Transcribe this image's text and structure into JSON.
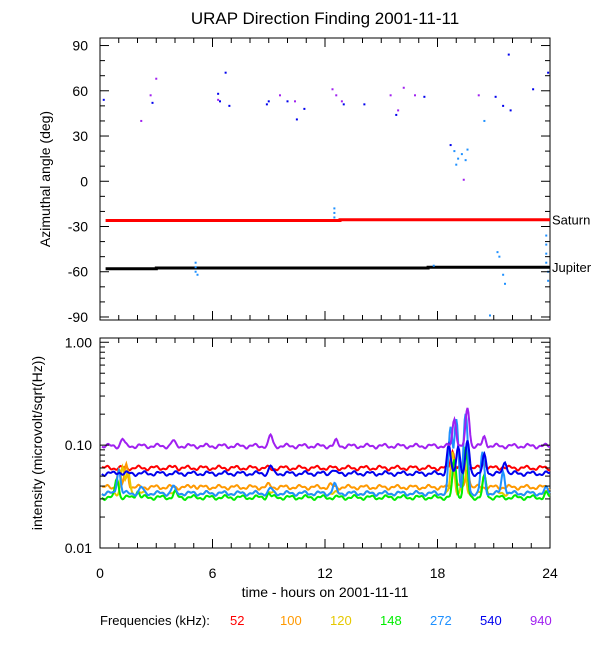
{
  "title": "URAP Direction Finding  2001-11-11",
  "xlabel": "time - hours on 2001-11-11",
  "frequencies_label": "Frequencies (kHz):",
  "chart_data": [
    {
      "type": "scatter",
      "title": "URAP Direction Finding  2001-11-11",
      "ylabel": "Azimuthal angle (deg)",
      "xlim": [
        0,
        24
      ],
      "ylim": [
        -92,
        95
      ],
      "xticks": [
        "0",
        "6",
        "12",
        "18",
        "24"
      ],
      "yticks": [
        "90",
        "60",
        "30",
        "0",
        "-30",
        "-60",
        "-90"
      ],
      "reference_lines": [
        {
          "name": "Saturn",
          "color": "#ff0000",
          "points": [
            [
              0.3,
              -26
            ],
            [
              12.8,
              -26
            ],
            [
              12.8,
              -25.5
            ],
            [
              24,
              -25.5
            ]
          ]
        },
        {
          "name": "Jupiter",
          "color": "#000000",
          "points": [
            [
              0.3,
              -58
            ],
            [
              3,
              -58
            ],
            [
              3,
              -57.5
            ],
            [
              17.5,
              -57.5
            ],
            [
              17.5,
              -57
            ],
            [
              24,
              -57
            ]
          ]
        }
      ],
      "points": [
        {
          "x": 0.2,
          "y": 54,
          "color": "#0000ee"
        },
        {
          "x": 2.2,
          "y": 40,
          "color": "#a020f0"
        },
        {
          "x": 2.7,
          "y": 57,
          "color": "#a020f0"
        },
        {
          "x": 2.8,
          "y": 52,
          "color": "#0000ee"
        },
        {
          "x": 3.0,
          "y": 68,
          "color": "#a020f0"
        },
        {
          "x": 6.3,
          "y": 58,
          "color": "#0000ee"
        },
        {
          "x": 6.3,
          "y": 54,
          "color": "#a020f0"
        },
        {
          "x": 6.4,
          "y": 53,
          "color": "#0000ee"
        },
        {
          "x": 6.7,
          "y": 72,
          "color": "#0000ee"
        },
        {
          "x": 6.9,
          "y": 50,
          "color": "#0000ee"
        },
        {
          "x": 8.9,
          "y": 51,
          "color": "#0000ee"
        },
        {
          "x": 9.0,
          "y": 53,
          "color": "#0000ee"
        },
        {
          "x": 9.6,
          "y": 57,
          "color": "#a020f0"
        },
        {
          "x": 10.0,
          "y": 53,
          "color": "#0000ee"
        },
        {
          "x": 10.4,
          "y": 53,
          "color": "#a020f0"
        },
        {
          "x": 10.5,
          "y": 41,
          "color": "#0000ee"
        },
        {
          "x": 10.9,
          "y": 48,
          "color": "#0000ee"
        },
        {
          "x": 12.4,
          "y": 61,
          "color": "#a020f0"
        },
        {
          "x": 12.6,
          "y": 57,
          "color": "#a020f0"
        },
        {
          "x": 12.9,
          "y": 53,
          "color": "#a020f0"
        },
        {
          "x": 13.0,
          "y": 51,
          "color": "#0000ee"
        },
        {
          "x": 14.1,
          "y": 51,
          "color": "#0000ee"
        },
        {
          "x": 15.5,
          "y": 57,
          "color": "#a020f0"
        },
        {
          "x": 15.8,
          "y": 44,
          "color": "#0000ee"
        },
        {
          "x": 15.9,
          "y": 47,
          "color": "#a020f0"
        },
        {
          "x": 16.2,
          "y": 62,
          "color": "#a020f0"
        },
        {
          "x": 16.8,
          "y": 57,
          "color": "#a020f0"
        },
        {
          "x": 17.3,
          "y": 56,
          "color": "#0000ee"
        },
        {
          "x": 18.7,
          "y": 24,
          "color": "#0000ee"
        },
        {
          "x": 18.9,
          "y": 20,
          "color": "#1e90ff"
        },
        {
          "x": 19.1,
          "y": 15,
          "color": "#1e90ff"
        },
        {
          "x": 19.0,
          "y": 11,
          "color": "#1e90ff"
        },
        {
          "x": 19.3,
          "y": 18,
          "color": "#1e90ff"
        },
        {
          "x": 19.5,
          "y": 14,
          "color": "#1e90ff"
        },
        {
          "x": 19.6,
          "y": 21,
          "color": "#1e90ff"
        },
        {
          "x": 19.4,
          "y": 1,
          "color": "#a020f0"
        },
        {
          "x": 20.2,
          "y": 57,
          "color": "#a020f0"
        },
        {
          "x": 20.5,
          "y": 40,
          "color": "#1e90ff"
        },
        {
          "x": 21.1,
          "y": 56,
          "color": "#0000ee"
        },
        {
          "x": 21.5,
          "y": 50,
          "color": "#0000ee"
        },
        {
          "x": 21.8,
          "y": 84,
          "color": "#0000ee"
        },
        {
          "x": 21.9,
          "y": 47,
          "color": "#0000ee"
        },
        {
          "x": 23.1,
          "y": 61,
          "color": "#0000ee"
        },
        {
          "x": 23.9,
          "y": 72,
          "color": "#0000ee"
        },
        {
          "x": 12.5,
          "y": -18,
          "color": "#1e90ff"
        },
        {
          "x": 12.5,
          "y": -21,
          "color": "#1e90ff"
        },
        {
          "x": 12.5,
          "y": -24,
          "color": "#1e90ff"
        },
        {
          "x": 5.1,
          "y": -54,
          "color": "#1e90ff"
        },
        {
          "x": 5.1,
          "y": -57,
          "color": "#1e90ff"
        },
        {
          "x": 5.1,
          "y": -60,
          "color": "#1e90ff"
        },
        {
          "x": 5.2,
          "y": -62,
          "color": "#1e90ff"
        },
        {
          "x": 17.8,
          "y": -56,
          "color": "#1e90ff"
        },
        {
          "x": 20.8,
          "y": -89,
          "color": "#1e90ff"
        },
        {
          "x": 21.2,
          "y": -47,
          "color": "#1e90ff"
        },
        {
          "x": 21.3,
          "y": -50,
          "color": "#1e90ff"
        },
        {
          "x": 21.5,
          "y": -62,
          "color": "#1e90ff"
        },
        {
          "x": 21.6,
          "y": -68,
          "color": "#1e90ff"
        },
        {
          "x": 23.8,
          "y": -36,
          "color": "#1e90ff"
        },
        {
          "x": 23.8,
          "y": -42,
          "color": "#1e90ff"
        },
        {
          "x": 23.8,
          "y": -48,
          "color": "#1e90ff"
        },
        {
          "x": 23.8,
          "y": -54,
          "color": "#1e90ff"
        },
        {
          "x": 23.9,
          "y": -60,
          "color": "#1e90ff"
        },
        {
          "x": 23.9,
          "y": -66,
          "color": "#1e90ff"
        }
      ]
    },
    {
      "type": "line",
      "ylabel": "intensity (microvolt/sqrt(Hz))",
      "yscale": "log",
      "xlim": [
        0,
        24
      ],
      "ylim": [
        0.01,
        1.1
      ],
      "xticks": [
        "0",
        "6",
        "12",
        "18",
        "24"
      ],
      "yticks": [
        "1.00",
        "0.10",
        "0.01"
      ],
      "series": [
        {
          "name": "52",
          "color": "#ff0000",
          "baseline": 0.06,
          "spikes": [
            [
              4,
              0.062
            ],
            [
              9.2,
              0.058
            ],
            [
              12.5,
              0.06
            ],
            [
              18.8,
              0.088
            ],
            [
              19.5,
              0.085
            ],
            [
              20.5,
              0.07
            ],
            [
              21.5,
              0.062
            ]
          ]
        },
        {
          "name": "100",
          "color": "#ff9900",
          "baseline": 0.039,
          "spikes": [
            [
              1.0,
              0.058
            ],
            [
              1.4,
              0.065
            ],
            [
              5.0,
              0.041
            ],
            [
              9.0,
              0.041
            ],
            [
              12.3,
              0.041
            ],
            [
              18.9,
              0.06
            ],
            [
              19.6,
              0.058
            ]
          ]
        },
        {
          "name": "120",
          "color": "#e6c800",
          "baseline": 0.034,
          "spikes": [
            [
              1.2,
              0.062
            ],
            [
              1.5,
              0.055
            ],
            [
              18.8,
              0.085
            ],
            [
              19.4,
              0.075
            ],
            [
              20.5,
              0.05
            ]
          ]
        },
        {
          "name": "148",
          "color": "#00ee00",
          "baseline": 0.031,
          "spikes": [
            [
              0.9,
              0.048
            ],
            [
              2.0,
              0.036
            ],
            [
              4.0,
              0.035
            ],
            [
              9.0,
              0.034
            ],
            [
              18.9,
              0.072
            ],
            [
              19.5,
              0.095
            ],
            [
              20.5,
              0.05
            ],
            [
              23.8,
              0.034
            ]
          ]
        },
        {
          "name": "272",
          "color": "#1e90ff",
          "baseline": 0.034,
          "spikes": [
            [
              1.0,
              0.058
            ],
            [
              2.2,
              0.039
            ],
            [
              3.9,
              0.04
            ],
            [
              9.1,
              0.038
            ],
            [
              12.5,
              0.042
            ],
            [
              18.7,
              0.15
            ],
            [
              19.0,
              0.18
            ],
            [
              19.5,
              0.2
            ],
            [
              20.4,
              0.085
            ],
            [
              21.5,
              0.055
            ],
            [
              23.8,
              0.038
            ]
          ]
        },
        {
          "name": "540",
          "color": "#0000ee",
          "baseline": 0.053,
          "spikes": [
            [
              1.0,
              0.055
            ],
            [
              9.1,
              0.063
            ],
            [
              12.4,
              0.058
            ],
            [
              18.6,
              0.1
            ],
            [
              19.1,
              0.098
            ],
            [
              19.6,
              0.11
            ],
            [
              20.5,
              0.08
            ],
            [
              21.6,
              0.07
            ]
          ]
        },
        {
          "name": "940",
          "color": "#a020f0",
          "baseline": 0.098,
          "spikes": [
            [
              1.2,
              0.115
            ],
            [
              3.9,
              0.11
            ],
            [
              9.1,
              0.125
            ],
            [
              12.6,
              0.11
            ],
            [
              18.9,
              0.18
            ],
            [
              19.6,
              0.23
            ],
            [
              20.5,
              0.12
            ]
          ]
        }
      ]
    }
  ]
}
